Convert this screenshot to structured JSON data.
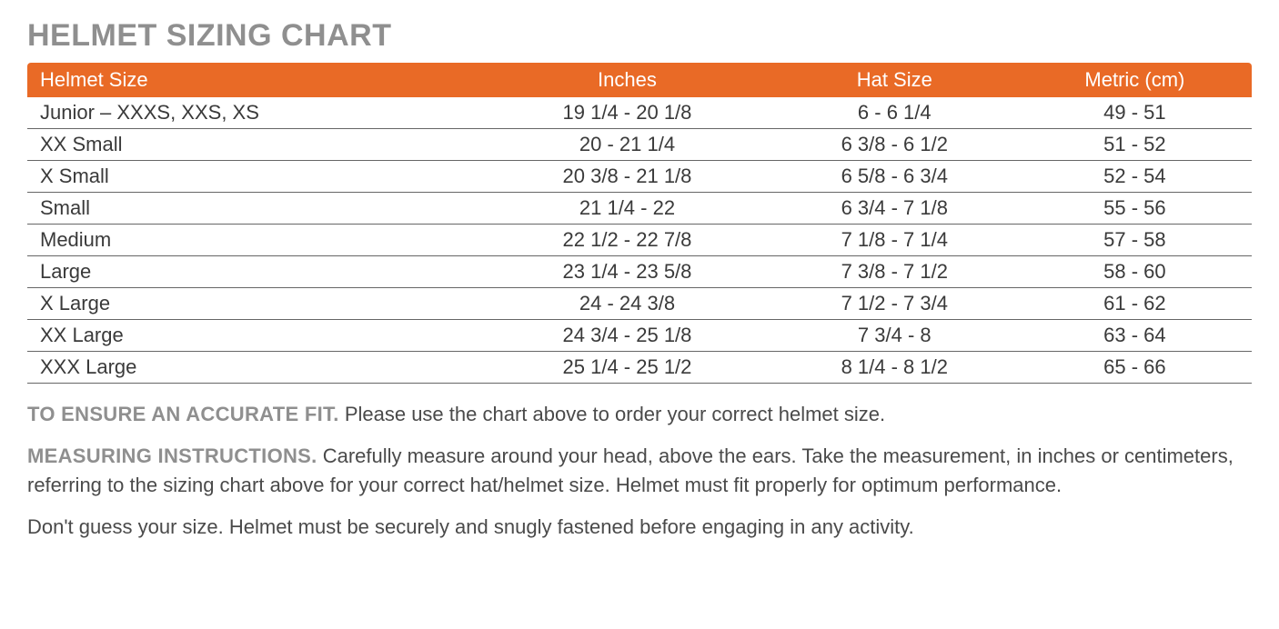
{
  "title": "HELMET SIZING CHART",
  "colors": {
    "header_bg": "#e96a26",
    "header_text": "#ffffff",
    "title_text": "#8f8f8f",
    "body_text": "#3a3a3a",
    "lead_text": "#8f8f8f",
    "row_border": "#666666",
    "background": "#ffffff"
  },
  "typography": {
    "title_fontsize": 34,
    "table_fontsize": 22,
    "notes_fontsize": 22,
    "font_family": "Helvetica Neue"
  },
  "table": {
    "columns": [
      "Helmet Size",
      "Inches",
      "Hat Size",
      "Metric (cm)"
    ],
    "column_align": [
      "left",
      "center",
      "center",
      "center"
    ],
    "rows": [
      [
        "Junior –  XXXS, XXS, XS",
        "19 1/4 - 20 1/8",
        "6 - 6 1/4",
        "49 - 51"
      ],
      [
        "XX Small",
        "20 - 21 1/4",
        "6 3/8 - 6 1/2",
        "51 - 52"
      ],
      [
        "X Small",
        "20 3/8 - 21 1/8",
        "6 5/8 - 6 3/4",
        "52 - 54"
      ],
      [
        "Small",
        "21 1/4 - 22",
        "6 3/4 - 7 1/8",
        "55 - 56"
      ],
      [
        "Medium",
        "22 1/2 - 22 7/8",
        "7 1/8 - 7 1/4",
        "57 - 58"
      ],
      [
        "Large",
        "23 1/4 - 23 5/8",
        "7 3/8 - 7 1/2",
        "58 - 60"
      ],
      [
        "X Large",
        "24 - 24 3/8",
        "7 1/2 - 7 3/4",
        "61 - 62"
      ],
      [
        "XX Large",
        "24 3/4 - 25 1/8",
        "7 3/4 - 8",
        "63 - 64"
      ],
      [
        "XXX Large",
        "25 1/4 - 25 1/2",
        "8 1/4 - 8 1/2",
        "65 - 66"
      ]
    ]
  },
  "notes": {
    "p1_lead": "TO ENSURE AN ACCURATE FIT.",
    "p1_body": " Please use the chart above to order your correct helmet size.",
    "p2_lead": "MEASURING INSTRUCTIONS.",
    "p2_body": " Carefully measure around your head, above the ears. Take the measurement, in inches or centimeters, referring to the sizing chart above for your correct hat/helmet size. Helmet must fit properly for optimum performance.",
    "p3": "Don't guess your size. Helmet must be securely and snugly fastened before engaging in any activity."
  }
}
